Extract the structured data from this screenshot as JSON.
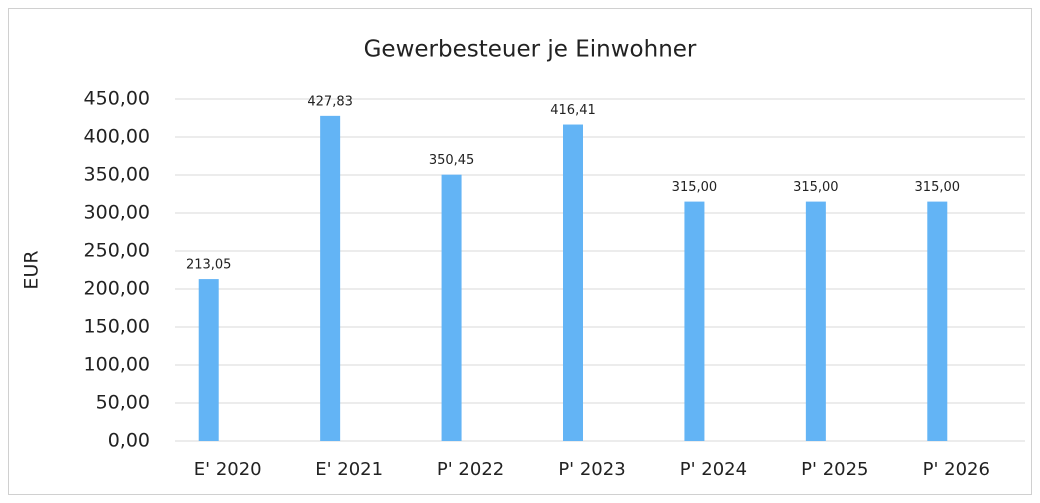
{
  "chart_data": {
    "type": "bar",
    "title": "Gewerbesteuer je Einwohner",
    "y_label": "EUR",
    "categories": [
      "E' 2020",
      "E' 2021",
      "P' 2022",
      "P' 2023",
      "P' 2024",
      "P' 2025",
      "P' 2026"
    ],
    "values": [
      213.05,
      427.83,
      350.45,
      416.41,
      315,
      315,
      315
    ],
    "value_labels": [
      "213,05",
      "427,83",
      "350,45",
      "416,41",
      "315,00",
      "315,00",
      "315,00"
    ],
    "color": "#63b4f5",
    "ylim": [
      0,
      450
    ],
    "yticks": [
      {
        "value": 0,
        "label": "0,00"
      },
      {
        "value": 50,
        "label": "50,00"
      },
      {
        "value": 100,
        "label": "100,00"
      },
      {
        "value": 150,
        "label": "150,00"
      },
      {
        "value": 200,
        "label": "200,00"
      },
      {
        "value": 250,
        "label": "250,00"
      },
      {
        "value": 300,
        "label": "300,00"
      },
      {
        "value": 350,
        "label": "350,00"
      },
      {
        "value": 400,
        "label": "400,00"
      },
      {
        "value": 450,
        "label": "450,00"
      }
    ],
    "grid": true
  }
}
